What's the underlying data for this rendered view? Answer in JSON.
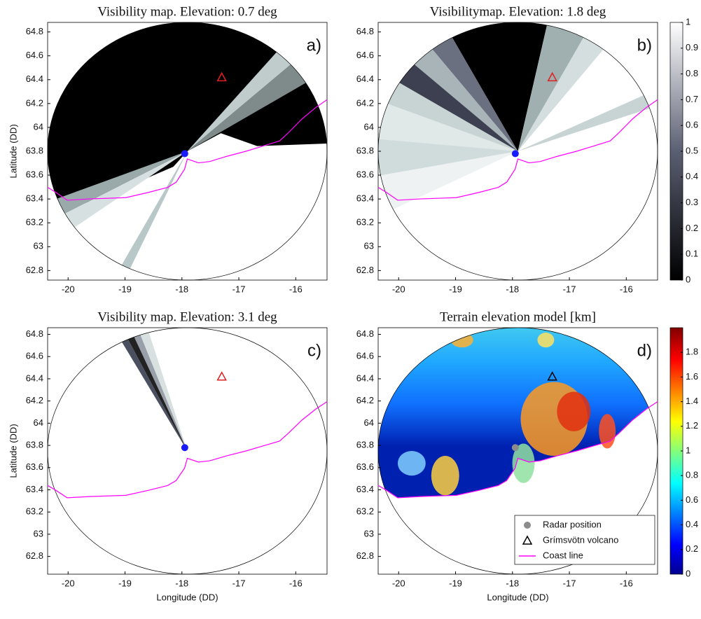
{
  "chart_data": [
    {
      "type": "map",
      "title": "Visibility map. Elevation: 0.7 deg",
      "label": "a)",
      "ylabel": "Latitude (DD)",
      "xlim": [
        -20.36,
        -15.45
      ],
      "ylim": [
        62.72,
        64.88
      ],
      "xticks": [
        -20,
        -19,
        -18,
        -17,
        -16
      ],
      "yticks": [
        62.8,
        63,
        63.2,
        63.4,
        63.6,
        63.8,
        64,
        64.2,
        64.4,
        64.6,
        64.8
      ],
      "radar": {
        "x": -17.95,
        "y": 63.78,
        "color": "#1a1aff"
      },
      "volcano": {
        "x": -17.3,
        "y": 64.42,
        "color": "#e02020"
      },
      "coast_color": "#ff00ff"
    },
    {
      "type": "map",
      "title": "Visibilitymap. Elevation: 1.8 deg",
      "label": "b)",
      "xlim": [
        -20.36,
        -15.45
      ],
      "ylim": [
        62.72,
        64.88
      ],
      "xticks": [
        -20,
        -19,
        -18,
        -17,
        -16
      ],
      "yticks": [
        62.8,
        63,
        63.2,
        63.4,
        63.6,
        63.8,
        64,
        64.2,
        64.4,
        64.6,
        64.8
      ],
      "radar": {
        "x": -17.95,
        "y": 63.78,
        "color": "#1a1aff"
      },
      "volcano": {
        "x": -17.3,
        "y": 64.42,
        "color": "#e02020"
      },
      "coast_color": "#ff00ff",
      "colorbar": {
        "colormap": "gray",
        "ylim": [
          0,
          1
        ],
        "yticks": [
          0,
          0.1,
          0.2,
          0.3,
          0.4,
          0.5,
          0.6,
          0.7,
          0.8,
          0.9,
          1
        ]
      }
    },
    {
      "type": "map",
      "title": "Visibility map. Elevation: 3.1 deg",
      "label": "c)",
      "ylabel": "Latitude (DD)",
      "xlabel": "Longitude (DD)",
      "xlim": [
        -20.36,
        -15.45
      ],
      "ylim": [
        62.64,
        64.86
      ],
      "xticks": [
        -20,
        -19,
        -18,
        -17,
        -16
      ],
      "yticks": [
        62.8,
        63,
        63.2,
        63.4,
        63.6,
        63.8,
        64,
        64.2,
        64.4,
        64.6,
        64.8
      ],
      "radar": {
        "x": -17.95,
        "y": 63.78,
        "color": "#1a1aff"
      },
      "volcano": {
        "x": -17.3,
        "y": 64.42,
        "color": "#e02020"
      },
      "coast_color": "#ff00ff"
    },
    {
      "type": "map",
      "title": "Terrain elevation model [km]",
      "label": "d)",
      "xlabel": "Longitude (DD)",
      "xlim": [
        -20.36,
        -15.45
      ],
      "ylim": [
        62.64,
        64.86
      ],
      "xticks": [
        -20,
        -19,
        -18,
        -17,
        -16
      ],
      "yticks": [
        62.8,
        63,
        63.2,
        63.4,
        63.6,
        63.8,
        64,
        64.2,
        64.4,
        64.6,
        64.8
      ],
      "radar": {
        "x": -17.95,
        "y": 63.78,
        "color": "#8c8c8c",
        "name": "Radar position"
      },
      "volcano": {
        "x": -17.3,
        "y": 64.42,
        "color": "#000000",
        "name": "Grímsvötn volcano"
      },
      "coast_color": "#ff00ff",
      "coast_name": "Coast line",
      "colorbar": {
        "colormap": "jet",
        "ylim": [
          0,
          2
        ],
        "yticks": [
          0,
          0.2,
          0.4,
          0.6,
          0.8,
          1,
          1.2,
          1.4,
          1.6,
          1.8
        ]
      }
    }
  ]
}
